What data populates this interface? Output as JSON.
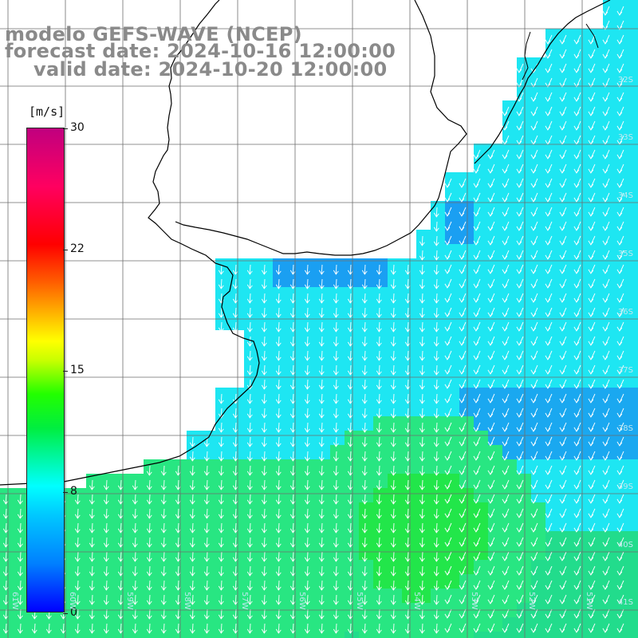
{
  "title": {
    "line1": "modelo GEFS-WAVE (NCEP)",
    "line2": "forecast date: 2024-10-16 12:00:00",
    "line3": "valid date: 2024-10-20 12:00:00"
  },
  "colorbar": {
    "unit": "[m/s]",
    "ticks": [
      "30",
      "22",
      "15",
      "8",
      "0"
    ],
    "range": [
      0,
      30
    ],
    "colors": [
      "#0000ff",
      "#0080ff",
      "#00ffff",
      "#22ff00",
      "#ffff00",
      "#ff6000",
      "#ff0000",
      "#c0007f"
    ]
  },
  "axes": {
    "lat_labels": [
      "32S",
      "33S",
      "34S",
      "35S",
      "36S",
      "37S",
      "38S",
      "39S",
      "40S",
      "41S"
    ],
    "lon_labels": [
      "61W",
      "60W",
      "59W",
      "58W",
      "57W",
      "56W",
      "55W",
      "54W",
      "53W",
      "52W",
      "51W"
    ]
  },
  "colors": {
    "ocean_cyan": "#1ee6f2",
    "ocean_blue": "#1a9ff2",
    "ocean_green": "#28e682",
    "land": "#ffffff",
    "grid": "#6e6e6e",
    "arrows": "#ffffff"
  },
  "icons": {
    "wind_arrow": "wind-direction-arrow-icon"
  }
}
